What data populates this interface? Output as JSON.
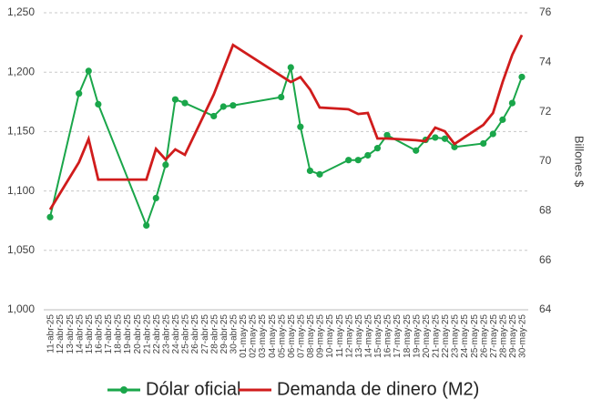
{
  "chart_data": {
    "type": "line",
    "y2label": "Billones $",
    "categories": [
      "11-abr-25",
      "12-abr-25",
      "13-abr-25",
      "14-abr-25",
      "15-abr-25",
      "16-abr-25",
      "17-abr-25",
      "18-abr-25",
      "19-abr-25",
      "20-abr-25",
      "21-abr-25",
      "22-abr-25",
      "23-abr-25",
      "24-abr-25",
      "25-abr-25",
      "26-abr-25",
      "27-abr-25",
      "28-abr-25",
      "29-abr-25",
      "30-abr-25",
      "01-may-25",
      "02-may-25",
      "03-may-25",
      "04-may-25",
      "05-may-25",
      "06-may-25",
      "07-may-25",
      "08-may-25",
      "09-may-25",
      "10-may-25",
      "11-may-25",
      "12-may-25",
      "13-may-25",
      "14-may-25",
      "15-may-25",
      "16-may-25",
      "17-may-25",
      "18-may-25",
      "19-may-25",
      "20-may-25",
      "21-may-25",
      "22-may-25",
      "23-may-25",
      "24-may-25",
      "25-may-25",
      "26-may-25",
      "27-may-25",
      "28-may-25",
      "29-may-25",
      "30-may-25"
    ],
    "series": [
      {
        "name": "Dólar oficial",
        "color": "#1aa64a",
        "markers": true,
        "x": [
          "11-abr-25",
          "14-abr-25",
          "15-abr-25",
          "16-abr-25",
          "21-abr-25",
          "22-abr-25",
          "23-abr-25",
          "24-abr-25",
          "25-abr-25",
          "28-abr-25",
          "29-abr-25",
          "30-abr-25",
          "05-may-25",
          "06-may-25",
          "07-may-25",
          "08-may-25",
          "09-may-25",
          "12-may-25",
          "13-may-25",
          "14-may-25",
          "15-may-25",
          "16-may-25",
          "19-may-25",
          "20-may-25",
          "21-may-25",
          "22-may-25",
          "23-may-25",
          "26-may-25",
          "27-may-25",
          "28-may-25",
          "29-may-25",
          "30-may-25"
        ],
        "values": [
          1078,
          1182,
          1201,
          1173,
          1071,
          1094,
          1122,
          1177,
          1174,
          1163,
          1171,
          1172,
          1179,
          1204,
          1154,
          1117,
          1114,
          1126,
          1126,
          1130,
          1136,
          1147,
          1134,
          1143,
          1145,
          1144,
          1137,
          1140,
          1148,
          1160,
          1174,
          1196
        ]
      },
      {
        "name": "Demanda de dinero (M2)",
        "color": "#d01c1c",
        "markers": false,
        "axis": "y2",
        "x": [
          "11-abr-25",
          "14-abr-25",
          "15-abr-25",
          "16-abr-25",
          "21-abr-25",
          "22-abr-25",
          "23-abr-25",
          "24-abr-25",
          "25-abr-25",
          "28-abr-25",
          "29-abr-25",
          "30-abr-25",
          "05-may-25",
          "06-may-25",
          "07-may-25",
          "08-may-25",
          "09-may-25",
          "12-may-25",
          "13-may-25",
          "14-may-25",
          "15-may-25",
          "16-may-25",
          "19-may-25",
          "20-may-25",
          "21-may-25",
          "22-may-25",
          "23-may-25",
          "26-may-25",
          "27-may-25",
          "28-may-25",
          "29-may-25",
          "30-may-25"
        ],
        "values": [
          68.05,
          69.96,
          70.9,
          69.26,
          69.26,
          70.5,
          70.07,
          70.48,
          70.26,
          72.7,
          73.7,
          74.7,
          73.45,
          73.2,
          73.4,
          72.9,
          72.17,
          72.1,
          71.91,
          71.95,
          70.92,
          70.92,
          70.85,
          70.81,
          71.36,
          71.21,
          70.7,
          71.47,
          71.95,
          73.2,
          74.3,
          75.1
        ]
      }
    ],
    "ylim": [
      1000,
      1250
    ],
    "yticks": [
      {
        "value": 1000,
        "label": "1,000"
      },
      {
        "value": 1050,
        "label": "1,050"
      },
      {
        "value": 1100,
        "label": "1,100"
      },
      {
        "value": 1150,
        "label": "1,150"
      },
      {
        "value": 1200,
        "label": "1,200"
      },
      {
        "value": 1250,
        "label": "1,250"
      }
    ],
    "y2lim": [
      64,
      76
    ],
    "y2ticks": [
      64,
      66,
      68,
      70,
      72,
      74,
      76
    ],
    "grid": true,
    "legend": "bottom"
  }
}
